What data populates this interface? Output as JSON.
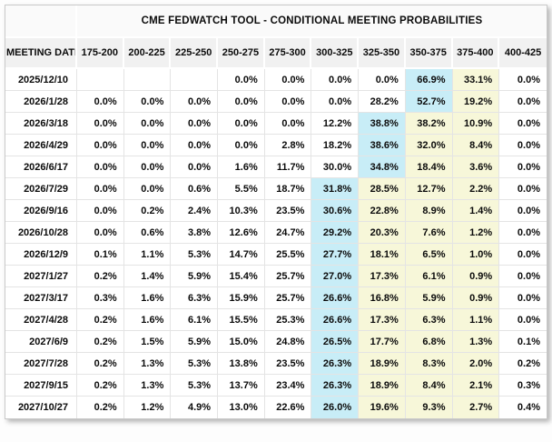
{
  "title": "CME FEDWATCH TOOL - CONDITIONAL MEETING PROBABILITIES",
  "columns": {
    "meeting_date_label": "MEETING DATE",
    "rate_ranges": [
      "175-200",
      "200-225",
      "225-250",
      "250-275",
      "275-300",
      "300-325",
      "325-350",
      "350-375",
      "375-400",
      "400-425"
    ]
  },
  "colors": {
    "highlight_blue": "#c8edf7",
    "highlight_yellow": "#f7f7d9",
    "header_bg": "#f1f1f1",
    "grid_border": "#e4e4e4"
  },
  "rows": [
    {
      "date": "2025/12/10",
      "values": [
        "",
        "",
        "",
        "0.0%",
        "0.0%",
        "0.0%",
        "0.0%",
        "66.9%",
        "33.1%",
        "0.0%"
      ],
      "cell_styles": [
        "plain",
        "plain",
        "plain",
        "plain",
        "plain",
        "plain",
        "plain",
        "blue",
        "yellow",
        "plain"
      ]
    },
    {
      "date": "2026/1/28",
      "values": [
        "0.0%",
        "0.0%",
        "0.0%",
        "0.0%",
        "0.0%",
        "0.0%",
        "28.2%",
        "52.7%",
        "19.2%",
        "0.0%"
      ],
      "cell_styles": [
        "plain",
        "plain",
        "plain",
        "plain",
        "plain",
        "plain",
        "plain",
        "blue",
        "yellow",
        "plain"
      ]
    },
    {
      "date": "2026/3/18",
      "values": [
        "0.0%",
        "0.0%",
        "0.0%",
        "0.0%",
        "0.0%",
        "12.2%",
        "38.8%",
        "38.2%",
        "10.9%",
        "0.0%"
      ],
      "cell_styles": [
        "plain",
        "plain",
        "plain",
        "plain",
        "plain",
        "plain",
        "blue",
        "yellow",
        "yellow",
        "plain"
      ]
    },
    {
      "date": "2026/4/29",
      "values": [
        "0.0%",
        "0.0%",
        "0.0%",
        "0.0%",
        "2.8%",
        "18.2%",
        "38.6%",
        "32.0%",
        "8.4%",
        "0.0%"
      ],
      "cell_styles": [
        "plain",
        "plain",
        "plain",
        "plain",
        "plain",
        "plain",
        "blue",
        "yellow",
        "yellow",
        "plain"
      ]
    },
    {
      "date": "2026/6/17",
      "values": [
        "0.0%",
        "0.0%",
        "0.0%",
        "1.6%",
        "11.7%",
        "30.0%",
        "34.8%",
        "18.4%",
        "3.6%",
        "0.0%"
      ],
      "cell_styles": [
        "plain",
        "plain",
        "plain",
        "plain",
        "plain",
        "plain",
        "blue",
        "yellow",
        "yellow",
        "plain"
      ]
    },
    {
      "date": "2026/7/29",
      "values": [
        "0.0%",
        "0.0%",
        "0.6%",
        "5.5%",
        "18.7%",
        "31.8%",
        "28.5%",
        "12.7%",
        "2.2%",
        "0.0%"
      ],
      "cell_styles": [
        "plain",
        "plain",
        "plain",
        "plain",
        "plain",
        "blue",
        "yellow",
        "yellow",
        "yellow",
        "plain"
      ]
    },
    {
      "date": "2026/9/16",
      "values": [
        "0.0%",
        "0.2%",
        "2.4%",
        "10.3%",
        "23.5%",
        "30.6%",
        "22.8%",
        "8.9%",
        "1.4%",
        "0.0%"
      ],
      "cell_styles": [
        "plain",
        "plain",
        "plain",
        "plain",
        "plain",
        "blue",
        "yellow",
        "yellow",
        "yellow",
        "plain"
      ]
    },
    {
      "date": "2026/10/28",
      "values": [
        "0.0%",
        "0.6%",
        "3.8%",
        "12.6%",
        "24.7%",
        "29.2%",
        "20.3%",
        "7.6%",
        "1.2%",
        "0.0%"
      ],
      "cell_styles": [
        "plain",
        "plain",
        "plain",
        "plain",
        "plain",
        "blue",
        "yellow",
        "yellow",
        "yellow",
        "plain"
      ]
    },
    {
      "date": "2026/12/9",
      "values": [
        "0.1%",
        "1.1%",
        "5.3%",
        "14.7%",
        "25.5%",
        "27.7%",
        "18.1%",
        "6.5%",
        "1.0%",
        "0.0%"
      ],
      "cell_styles": [
        "plain",
        "plain",
        "plain",
        "plain",
        "plain",
        "blue",
        "yellow",
        "yellow",
        "yellow",
        "plain"
      ]
    },
    {
      "date": "2027/1/27",
      "values": [
        "0.2%",
        "1.4%",
        "5.9%",
        "15.4%",
        "25.7%",
        "27.0%",
        "17.3%",
        "6.1%",
        "0.9%",
        "0.0%"
      ],
      "cell_styles": [
        "plain",
        "plain",
        "plain",
        "plain",
        "plain",
        "blue",
        "yellow",
        "yellow",
        "yellow",
        "plain"
      ]
    },
    {
      "date": "2027/3/17",
      "values": [
        "0.3%",
        "1.6%",
        "6.3%",
        "15.9%",
        "25.7%",
        "26.6%",
        "16.8%",
        "5.9%",
        "0.9%",
        "0.0%"
      ],
      "cell_styles": [
        "plain",
        "plain",
        "plain",
        "plain",
        "plain",
        "blue",
        "yellow",
        "yellow",
        "yellow",
        "plain"
      ]
    },
    {
      "date": "2027/4/28",
      "values": [
        "0.2%",
        "1.6%",
        "6.1%",
        "15.5%",
        "25.3%",
        "26.6%",
        "17.3%",
        "6.3%",
        "1.1%",
        "0.0%"
      ],
      "cell_styles": [
        "plain",
        "plain",
        "plain",
        "plain",
        "plain",
        "blue",
        "yellow",
        "yellow",
        "yellow",
        "plain"
      ]
    },
    {
      "date": "2027/6/9",
      "values": [
        "0.2%",
        "1.5%",
        "5.9%",
        "15.0%",
        "24.8%",
        "26.5%",
        "17.7%",
        "6.8%",
        "1.3%",
        "0.1%"
      ],
      "cell_styles": [
        "plain",
        "plain",
        "plain",
        "plain",
        "plain",
        "blue",
        "yellow",
        "yellow",
        "yellow",
        "plain"
      ]
    },
    {
      "date": "2027/7/28",
      "values": [
        "0.2%",
        "1.3%",
        "5.3%",
        "13.8%",
        "23.5%",
        "26.3%",
        "18.9%",
        "8.3%",
        "2.0%",
        "0.2%"
      ],
      "cell_styles": [
        "plain",
        "plain",
        "plain",
        "plain",
        "plain",
        "blue",
        "yellow",
        "yellow",
        "yellow",
        "plain"
      ]
    },
    {
      "date": "2027/9/15",
      "values": [
        "0.2%",
        "1.3%",
        "5.3%",
        "13.7%",
        "23.4%",
        "26.3%",
        "18.9%",
        "8.4%",
        "2.1%",
        "0.3%"
      ],
      "cell_styles": [
        "plain",
        "plain",
        "plain",
        "plain",
        "plain",
        "blue",
        "yellow",
        "yellow",
        "yellow",
        "plain"
      ]
    },
    {
      "date": "2027/10/27",
      "values": [
        "0.2%",
        "1.2%",
        "4.9%",
        "13.0%",
        "22.6%",
        "26.0%",
        "19.6%",
        "9.3%",
        "2.7%",
        "0.4%"
      ],
      "cell_styles": [
        "plain",
        "plain",
        "plain",
        "plain",
        "plain",
        "blue",
        "yellow",
        "yellow",
        "yellow",
        "plain"
      ]
    }
  ]
}
